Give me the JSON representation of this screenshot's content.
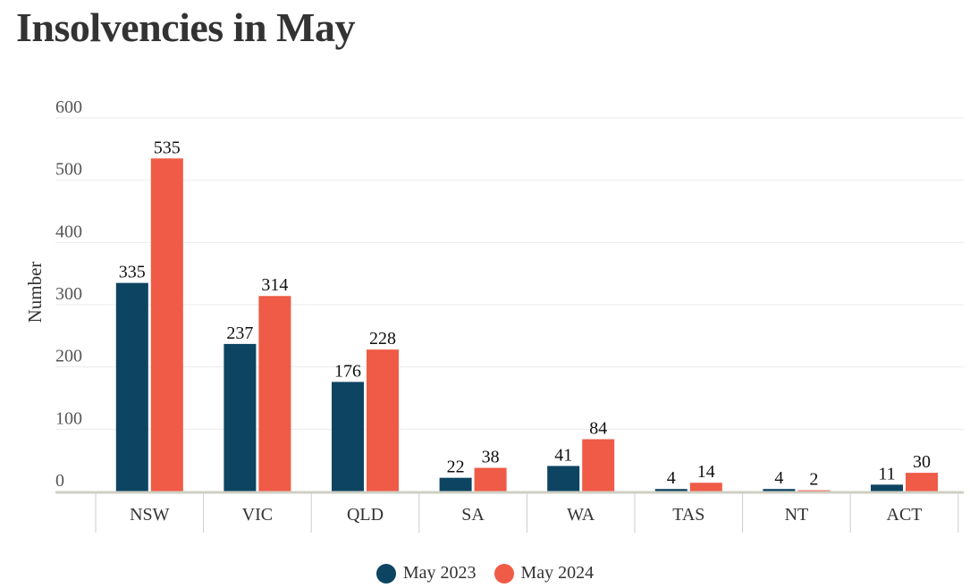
{
  "chart_data": {
    "type": "bar",
    "title": "Insolvencies in May",
    "ylabel": "Number",
    "xlabel": "",
    "ylim": [
      0,
      600
    ],
    "yticks": [
      0,
      100,
      200,
      300,
      400,
      500,
      600
    ],
    "categories": [
      "NSW",
      "VIC",
      "QLD",
      "SA",
      "WA",
      "TAS",
      "NT",
      "ACT"
    ],
    "series": [
      {
        "name": "May 2023",
        "color": "#0d4461",
        "values": [
          335,
          237,
          176,
          22,
          41,
          4,
          4,
          11
        ]
      },
      {
        "name": "May 2024",
        "color": "#ef5b46",
        "values": [
          535,
          314,
          228,
          38,
          84,
          14,
          2,
          30
        ]
      }
    ],
    "grid": true,
    "legend": "bottom-center"
  }
}
